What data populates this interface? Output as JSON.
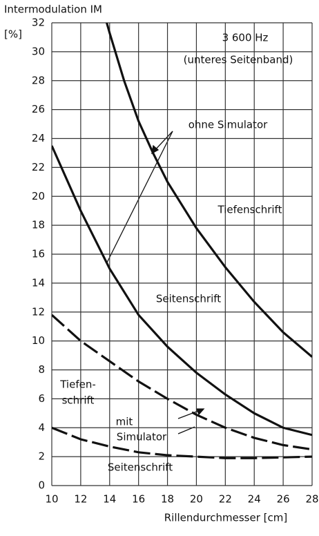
{
  "chart_data": {
    "type": "line",
    "title": "Intermodulation IM",
    "y_unit": "[%]",
    "xlabel": "Rillendurchmesser [cm]",
    "annotations": [
      "3 600 Hz",
      "(unteres Seitenband)",
      "ohne Simulator",
      [
        "mit",
        "Simulator"
      ]
    ],
    "xlim": [
      10,
      28
    ],
    "ylim": [
      0,
      32
    ],
    "xticks": [
      10,
      12,
      14,
      16,
      18,
      20,
      22,
      24,
      26,
      28
    ],
    "yticks": [
      0,
      2,
      4,
      6,
      8,
      10,
      12,
      14,
      16,
      18,
      20,
      22,
      24,
      26,
      28,
      30,
      32
    ],
    "grid": true,
    "series": [
      {
        "name": [
          "Tiefenschrift"
        ],
        "color": "#111",
        "dashed": false,
        "x": [
          13.8,
          14,
          15,
          16,
          17,
          18,
          20,
          22,
          24,
          26,
          28
        ],
        "values": [
          32,
          31.3,
          28,
          25.2,
          23,
          21,
          17.8,
          15.1,
          12.7,
          10.6,
          8.9
        ]
      },
      {
        "name": [
          "Seitenschrift"
        ],
        "color": "#111",
        "dashed": false,
        "x": [
          10,
          12,
          14,
          16,
          18,
          20,
          22,
          24,
          26,
          28
        ],
        "values": [
          23.5,
          19,
          15,
          11.8,
          9.6,
          7.8,
          6.3,
          5,
          4,
          3.5
        ]
      },
      {
        "name": [
          "Tiefen-",
          "schrift"
        ],
        "color": "#111",
        "dashed": true,
        "x": [
          10,
          12,
          14,
          16,
          18,
          20,
          22,
          24,
          26,
          28
        ],
        "values": [
          11.8,
          10,
          8.6,
          7.2,
          6,
          4.9,
          4,
          3.3,
          2.8,
          2.5
        ]
      },
      {
        "name": [
          "Seitenschrift"
        ],
        "color": "#111",
        "dashed": true,
        "x": [
          10,
          12,
          14,
          16,
          18,
          20,
          22,
          24,
          26,
          28
        ],
        "values": [
          4,
          3.2,
          2.7,
          2.3,
          2.1,
          2,
          1.9,
          1.9,
          1.95,
          2
        ]
      }
    ]
  }
}
